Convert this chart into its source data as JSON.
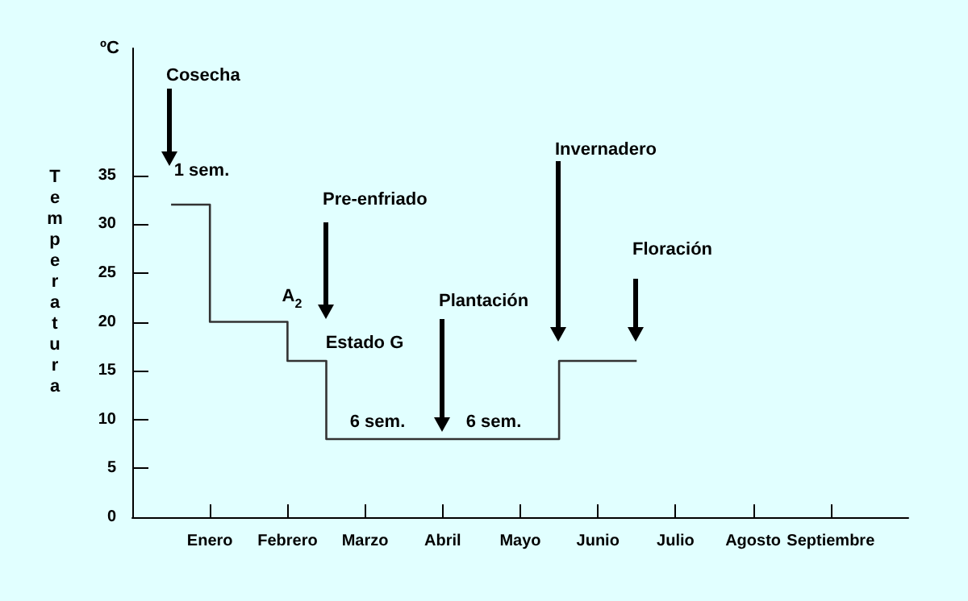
{
  "chart_data": {
    "type": "step",
    "ylabel": "Temperatura",
    "color": "#333333",
    "marker": "none",
    "categories": [
      null,
      null,
      "Enero",
      null,
      "Febrero",
      null,
      "Marzo",
      null,
      "Abril",
      null,
      "Mayo",
      null,
      "Junio",
      null,
      "Julio",
      null,
      "Agosto",
      null,
      "Septiembre",
      null,
      null
    ],
    "values": [
      null,
      32,
      20,
      20,
      16,
      8,
      8,
      8,
      8,
      8,
      8,
      16,
      16,
      16,
      null,
      null,
      null,
      null,
      null,
      null,
      null
    ],
    "ylim": [
      0,
      48
    ],
    "yticks": [
      0,
      5,
      10,
      15,
      20,
      25,
      30,
      35
    ],
    "annotations": [
      "Cosecha",
      "1 sem.",
      "Pre-enfriado",
      "A$_{2}$",
      "Estado G",
      "6 sem.",
      "Plantación",
      "6 sem.",
      "Invernadero",
      "Floración",
      "ºC"
    ]
  }
}
